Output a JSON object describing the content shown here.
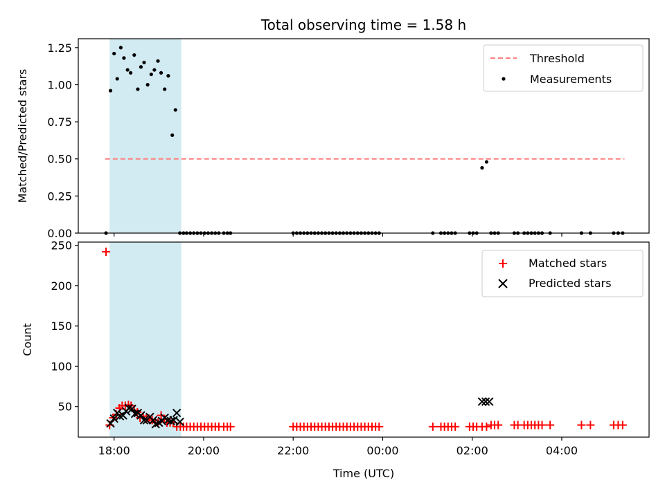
{
  "chart_data": {
    "title": "Total observing time = 1.58 h",
    "xlabel": "Time (UTC)",
    "x_unit": "hours UTC (values past midnight continue above 24)",
    "xlim": [
      17.2,
      29.95
    ],
    "xticks": [
      {
        "value": 18,
        "label": "18:00"
      },
      {
        "value": 20,
        "label": "20:00"
      },
      {
        "value": 22,
        "label": "22:00"
      },
      {
        "value": 24,
        "label": "00:00"
      },
      {
        "value": 26,
        "label": "02:00"
      },
      {
        "value": 28,
        "label": "04:00"
      }
    ],
    "shaded_interval": {
      "x": [
        17.9,
        19.5
      ],
      "color": "#add8e6"
    },
    "panels": [
      {
        "type": "scatter",
        "ylabel": "Matched/Predicted stars",
        "ylim": [
          0,
          1.31
        ],
        "yticks": [
          {
            "value": 0.0,
            "label": "0.00"
          },
          {
            "value": 0.25,
            "label": "0.25"
          },
          {
            "value": 0.5,
            "label": "0.50"
          },
          {
            "value": 0.75,
            "label": "0.75"
          },
          {
            "value": 1.0,
            "label": "1.00"
          },
          {
            "value": 1.25,
            "label": "1.25"
          }
        ],
        "threshold": {
          "name": "Threshold",
          "value": 0.5,
          "x": [
            17.8,
            29.4
          ],
          "color": "#ff7f7f"
        },
        "series": [
          {
            "name": "Measurements",
            "marker": "dot",
            "color": "#000000",
            "points": [
              [
                17.82,
                0
              ],
              [
                17.92,
                0.96
              ],
              [
                18.0,
                1.21
              ],
              [
                18.07,
                1.04
              ],
              [
                18.15,
                1.25
              ],
              [
                18.22,
                1.18
              ],
              [
                18.3,
                1.1
              ],
              [
                18.37,
                1.08
              ],
              [
                18.45,
                1.2
              ],
              [
                18.53,
                0.97
              ],
              [
                18.6,
                1.12
              ],
              [
                18.67,
                1.15
              ],
              [
                18.75,
                1.0
              ],
              [
                18.83,
                1.07
              ],
              [
                18.9,
                1.1
              ],
              [
                18.98,
                1.16
              ],
              [
                19.05,
                1.08
              ],
              [
                19.13,
                0.97
              ],
              [
                19.21,
                1.06
              ],
              [
                19.3,
                0.66
              ],
              [
                19.37,
                0.83
              ],
              [
                19.47,
                0
              ],
              [
                19.55,
                0
              ],
              [
                19.62,
                0
              ],
              [
                19.7,
                0
              ],
              [
                19.78,
                0
              ],
              [
                19.86,
                0
              ],
              [
                19.94,
                0
              ],
              [
                20.02,
                0
              ],
              [
                20.1,
                0
              ],
              [
                20.18,
                0
              ],
              [
                20.26,
                0
              ],
              [
                20.34,
                0
              ],
              [
                20.45,
                0
              ],
              [
                20.53,
                0
              ],
              [
                20.6,
                0
              ],
              [
                22.0,
                0
              ],
              [
                22.08,
                0
              ],
              [
                22.16,
                0
              ],
              [
                22.24,
                0
              ],
              [
                22.32,
                0
              ],
              [
                22.4,
                0
              ],
              [
                22.48,
                0
              ],
              [
                22.56,
                0
              ],
              [
                22.64,
                0
              ],
              [
                22.72,
                0
              ],
              [
                22.8,
                0
              ],
              [
                22.88,
                0
              ],
              [
                22.96,
                0
              ],
              [
                23.04,
                0
              ],
              [
                23.12,
                0
              ],
              [
                23.2,
                0
              ],
              [
                23.28,
                0
              ],
              [
                23.36,
                0
              ],
              [
                23.44,
                0
              ],
              [
                23.52,
                0
              ],
              [
                23.6,
                0
              ],
              [
                23.68,
                0
              ],
              [
                23.76,
                0
              ],
              [
                23.84,
                0
              ],
              [
                23.92,
                0
              ],
              [
                25.12,
                0
              ],
              [
                25.3,
                0
              ],
              [
                25.38,
                0
              ],
              [
                25.46,
                0
              ],
              [
                25.54,
                0
              ],
              [
                25.62,
                0
              ],
              [
                25.94,
                0
              ],
              [
                26.02,
                0
              ],
              [
                26.1,
                0
              ],
              [
                26.22,
                0.44
              ],
              [
                26.32,
                0.48
              ],
              [
                26.42,
                0
              ],
              [
                26.5,
                0
              ],
              [
                26.58,
                0
              ],
              [
                26.94,
                0
              ],
              [
                27.02,
                0
              ],
              [
                27.16,
                0
              ],
              [
                27.24,
                0
              ],
              [
                27.32,
                0
              ],
              [
                27.4,
                0
              ],
              [
                27.48,
                0
              ],
              [
                27.56,
                0
              ],
              [
                27.74,
                0
              ],
              [
                28.44,
                0
              ],
              [
                28.64,
                0
              ],
              [
                29.16,
                0
              ],
              [
                29.26,
                0
              ],
              [
                29.36,
                0
              ]
            ]
          }
        ]
      },
      {
        "type": "scatter",
        "ylabel": "Count",
        "ylim": [
          12,
          254
        ],
        "yticks": [
          {
            "value": 50,
            "label": "50"
          },
          {
            "value": 100,
            "label": "100"
          },
          {
            "value": 150,
            "label": "150"
          },
          {
            "value": 200,
            "label": "200"
          },
          {
            "value": 250,
            "label": "250"
          }
        ],
        "series": [
          {
            "name": "Matched stars",
            "marker": "plus",
            "color": "#ff0000",
            "points": [
              [
                17.82,
                242
              ],
              [
                17.9,
                27
              ],
              [
                17.98,
                36
              ],
              [
                18.05,
                40
              ],
              [
                18.12,
                48
              ],
              [
                18.18,
                51
              ],
              [
                18.25,
                51
              ],
              [
                18.32,
                52
              ],
              [
                18.38,
                51
              ],
              [
                18.45,
                45
              ],
              [
                18.52,
                43
              ],
              [
                18.58,
                36
              ],
              [
                18.65,
                38
              ],
              [
                18.72,
                35
              ],
              [
                18.78,
                35
              ],
              [
                18.85,
                33
              ],
              [
                18.92,
                30
              ],
              [
                18.98,
                30
              ],
              [
                19.05,
                39
              ],
              [
                19.12,
                34
              ],
              [
                19.18,
                30
              ],
              [
                19.25,
                30
              ],
              [
                19.32,
                30
              ],
              [
                19.4,
                25
              ],
              [
                19.48,
                25
              ],
              [
                19.55,
                25
              ],
              [
                19.62,
                25
              ],
              [
                19.7,
                25
              ],
              [
                19.78,
                25
              ],
              [
                19.86,
                25
              ],
              [
                19.94,
                25
              ],
              [
                20.02,
                25
              ],
              [
                20.1,
                25
              ],
              [
                20.18,
                25
              ],
              [
                20.26,
                25
              ],
              [
                20.34,
                25
              ],
              [
                20.45,
                25
              ],
              [
                20.53,
                25
              ],
              [
                20.6,
                25
              ],
              [
                22.0,
                25
              ],
              [
                22.08,
                25
              ],
              [
                22.16,
                25
              ],
              [
                22.24,
                25
              ],
              [
                22.32,
                25
              ],
              [
                22.4,
                25
              ],
              [
                22.48,
                25
              ],
              [
                22.56,
                25
              ],
              [
                22.64,
                25
              ],
              [
                22.72,
                25
              ],
              [
                22.8,
                25
              ],
              [
                22.88,
                25
              ],
              [
                22.96,
                25
              ],
              [
                23.04,
                25
              ],
              [
                23.12,
                25
              ],
              [
                23.2,
                25
              ],
              [
                23.28,
                25
              ],
              [
                23.36,
                25
              ],
              [
                23.44,
                25
              ],
              [
                23.52,
                25
              ],
              [
                23.6,
                25
              ],
              [
                23.68,
                25
              ],
              [
                23.76,
                25
              ],
              [
                23.84,
                25
              ],
              [
                23.92,
                25
              ],
              [
                25.12,
                25
              ],
              [
                25.3,
                25
              ],
              [
                25.38,
                25
              ],
              [
                25.46,
                25
              ],
              [
                25.54,
                25
              ],
              [
                25.62,
                25
              ],
              [
                25.94,
                25
              ],
              [
                26.02,
                25
              ],
              [
                26.1,
                25
              ],
              [
                26.22,
                25
              ],
              [
                26.32,
                25
              ],
              [
                26.42,
                27
              ],
              [
                26.5,
                27
              ],
              [
                26.58,
                27
              ],
              [
                26.94,
                27
              ],
              [
                27.02,
                27
              ],
              [
                27.16,
                27
              ],
              [
                27.24,
                27
              ],
              [
                27.32,
                27
              ],
              [
                27.4,
                27
              ],
              [
                27.48,
                27
              ],
              [
                27.56,
                27
              ],
              [
                27.74,
                27
              ],
              [
                28.44,
                27
              ],
              [
                28.64,
                27
              ],
              [
                29.16,
                27
              ],
              [
                29.26,
                27
              ],
              [
                29.36,
                27
              ]
            ]
          },
          {
            "name": "Predicted stars",
            "marker": "x",
            "color": "#000000",
            "points": [
              [
                17.92,
                29
              ],
              [
                18.0,
                35
              ],
              [
                18.07,
                42
              ],
              [
                18.13,
                38
              ],
              [
                18.2,
                39
              ],
              [
                18.27,
                44
              ],
              [
                18.33,
                48
              ],
              [
                18.4,
                47
              ],
              [
                18.47,
                41
              ],
              [
                18.53,
                42
              ],
              [
                18.6,
                39
              ],
              [
                18.67,
                33
              ],
              [
                18.73,
                33
              ],
              [
                18.8,
                37
              ],
              [
                18.87,
                33
              ],
              [
                18.93,
                28
              ],
              [
                19.0,
                30
              ],
              [
                19.07,
                32
              ],
              [
                19.13,
                36
              ],
              [
                19.2,
                33
              ],
              [
                19.27,
                32
              ],
              [
                19.33,
                33
              ],
              [
                19.4,
                42
              ],
              [
                19.47,
                31
              ],
              [
                26.22,
                56
              ],
              [
                26.3,
                56
              ],
              [
                26.38,
                56
              ]
            ]
          }
        ]
      }
    ]
  }
}
